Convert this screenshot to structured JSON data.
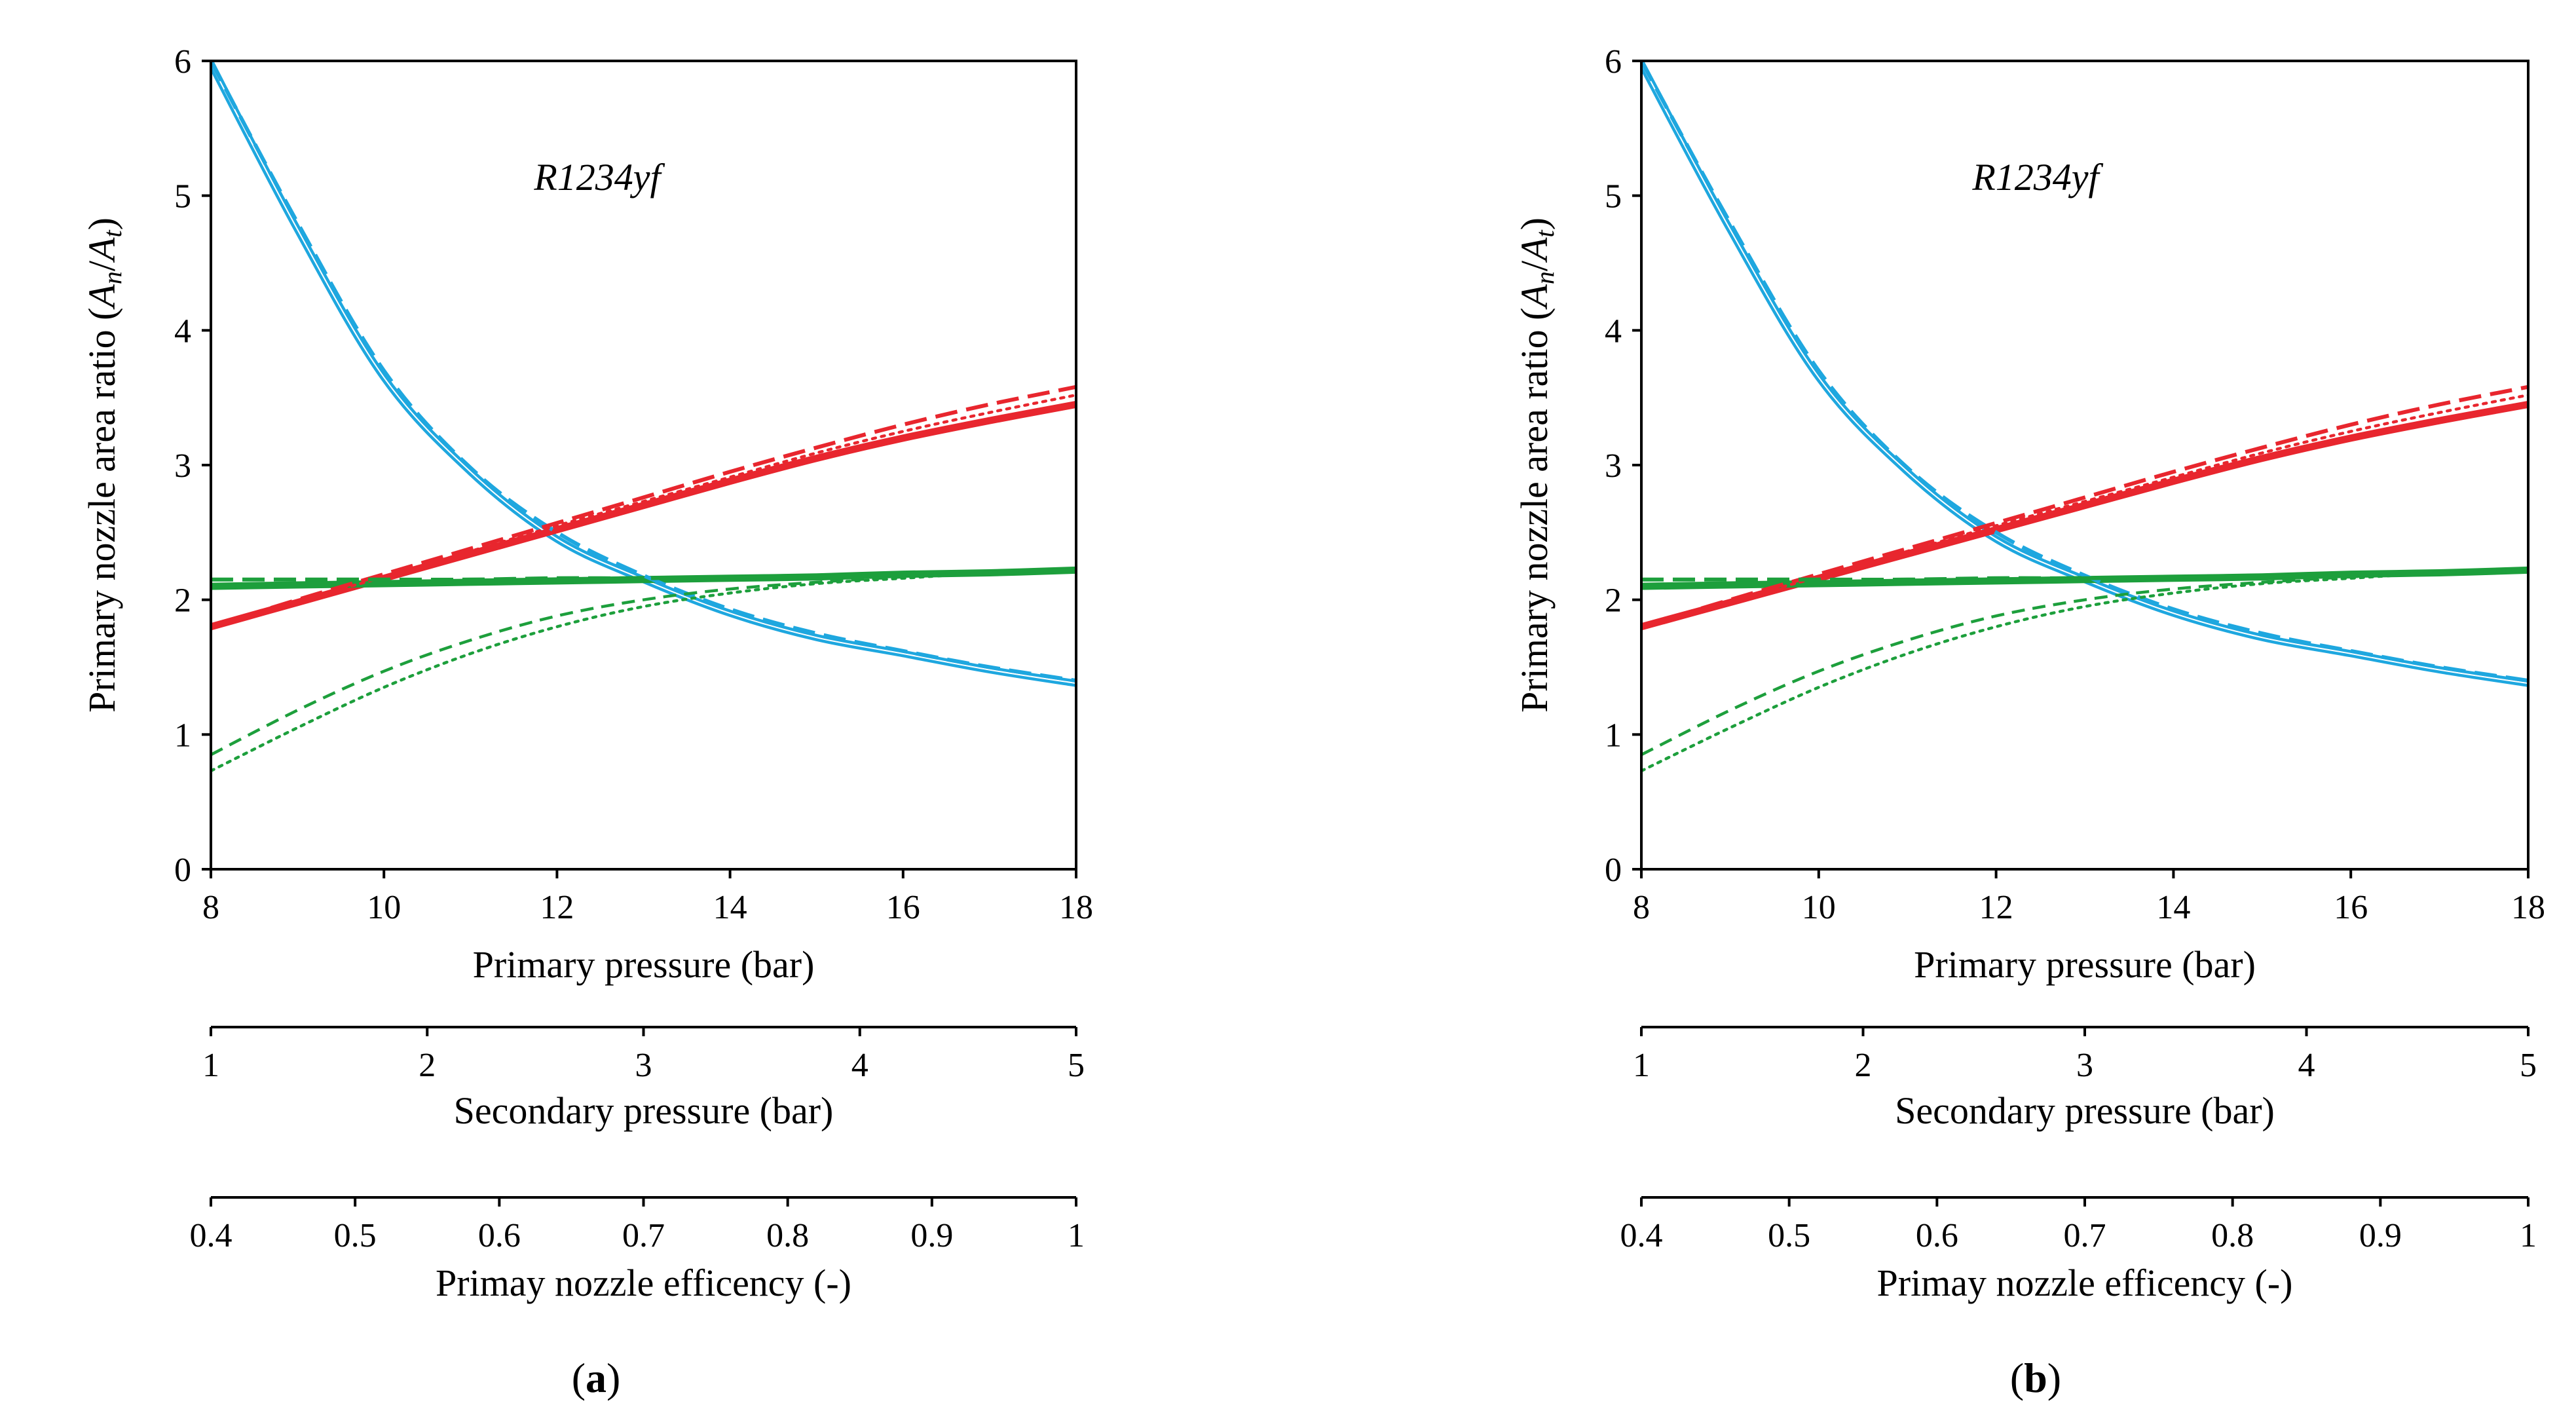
{
  "colors": {
    "blue": "#1ea7df",
    "red": "#e8262e",
    "green": "#1d9f3c",
    "axis": "#000000"
  },
  "chart_data": [
    {
      "panel": "(a)",
      "panel_label": "a",
      "type": "line",
      "annotation": "R1234yf",
      "ylabel": "Primary nozzle area ratio (An/At)",
      "ylabel_main": "Primary nozzle area ratio (",
      "ylabel_var1": "A",
      "ylabel_sub1": "n",
      "ylabel_var2": "A",
      "ylabel_sub2": "t",
      "ylim": [
        0,
        6
      ],
      "yticks": [
        "0",
        "1",
        "2",
        "3",
        "4",
        "5",
        "6"
      ],
      "xaxes": [
        {
          "label": "Primary pressure (bar)",
          "range": [
            8,
            18
          ],
          "ticks": [
            "8",
            "10",
            "12",
            "14",
            "16",
            "18"
          ]
        },
        {
          "label": "Secondary pressure (bar)",
          "range": [
            1,
            5
          ],
          "ticks": [
            "1",
            "2",
            "3",
            "4",
            "5"
          ]
        },
        {
          "label": "Primay nozzle efficency (-)",
          "range": [
            0.4,
            1
          ],
          "ticks": [
            "0.4",
            "0.5",
            "0.6",
            "0.7",
            "0.8",
            "0.9",
            "1"
          ]
        }
      ],
      "x": [
        8,
        9,
        10,
        11,
        12,
        13,
        14,
        15,
        16,
        17,
        18
      ],
      "series": [
        {
          "name": "blue-solid",
          "color": "blue",
          "style": "solid",
          "values": [
            5.98,
            4.75,
            3.65,
            2.95,
            2.45,
            2.15,
            1.9,
            1.72,
            1.6,
            1.48,
            1.38
          ]
        },
        {
          "name": "blue-dashed",
          "color": "blue",
          "style": "longdash",
          "values": [
            6.0,
            4.8,
            3.7,
            2.98,
            2.5,
            2.18,
            1.93,
            1.75,
            1.62,
            1.5,
            1.4
          ]
        },
        {
          "name": "red-solid",
          "color": "red",
          "style": "solid",
          "values": [
            1.8,
            1.98,
            2.16,
            2.34,
            2.52,
            2.7,
            2.88,
            3.05,
            3.2,
            3.33,
            3.45
          ]
        },
        {
          "name": "red-dashed",
          "color": "red",
          "style": "longdash",
          "values": [
            1.8,
            2.0,
            2.19,
            2.38,
            2.57,
            2.76,
            2.95,
            3.13,
            3.3,
            3.45,
            3.58
          ]
        },
        {
          "name": "red-dotted",
          "color": "red",
          "style": "dotted",
          "values": [
            1.8,
            1.99,
            2.17,
            2.36,
            2.55,
            2.73,
            2.91,
            3.09,
            3.25,
            3.39,
            3.52
          ]
        },
        {
          "name": "green-solid",
          "color": "green",
          "style": "solid",
          "values": [
            2.1,
            2.11,
            2.12,
            2.13,
            2.14,
            2.15,
            2.16,
            2.17,
            2.19,
            2.2,
            2.22
          ]
        },
        {
          "name": "green-longdash",
          "color": "green",
          "style": "longdash",
          "values": [
            2.15,
            2.15,
            2.15,
            2.15,
            2.16,
            2.16,
            2.17,
            2.18,
            2.19,
            2.21,
            2.22
          ]
        },
        {
          "name": "green-dashed",
          "color": "green",
          "style": "dashed",
          "values": [
            0.85,
            1.18,
            1.47,
            1.7,
            1.88,
            2.0,
            2.08,
            2.13,
            2.17,
            2.2,
            2.22
          ]
        },
        {
          "name": "green-dotted",
          "color": "green",
          "style": "dotted",
          "values": [
            0.73,
            1.05,
            1.35,
            1.6,
            1.8,
            1.95,
            2.05,
            2.12,
            2.16,
            2.2,
            2.22
          ]
        }
      ]
    },
    {
      "panel": "(b)",
      "panel_label": "b",
      "type": "line",
      "annotation": "R1234yf",
      "ylabel": "Primary nozzle area ratio (An/At)",
      "ylabel_main": "Primary nozzle area ratio (",
      "ylabel_var1": "A",
      "ylabel_sub1": "n",
      "ylabel_var2": "A",
      "ylabel_sub2": "t",
      "ylim": [
        0,
        6
      ],
      "yticks": [
        "0",
        "1",
        "2",
        "3",
        "4",
        "5",
        "6"
      ],
      "xaxes": [
        {
          "label": "Primary pressure (bar)",
          "range": [
            8,
            18
          ],
          "ticks": [
            "8",
            "10",
            "12",
            "14",
            "16",
            "18"
          ]
        },
        {
          "label": "Secondary pressure (bar)",
          "range": [
            1,
            5
          ],
          "ticks": [
            "1",
            "2",
            "3",
            "4",
            "5"
          ]
        },
        {
          "label": "Primay nozzle efficency (-)",
          "range": [
            0.4,
            1
          ],
          "ticks": [
            "0.4",
            "0.5",
            "0.6",
            "0.7",
            "0.8",
            "0.9",
            "1"
          ]
        }
      ],
      "x": [
        8,
        9,
        10,
        11,
        12,
        13,
        14,
        15,
        16,
        17,
        18
      ],
      "series": [
        {
          "name": "blue-solid",
          "color": "blue",
          "style": "solid",
          "values": [
            5.98,
            4.75,
            3.65,
            2.95,
            2.45,
            2.15,
            1.9,
            1.72,
            1.6,
            1.48,
            1.38
          ]
        },
        {
          "name": "blue-dashed",
          "color": "blue",
          "style": "longdash",
          "values": [
            6.0,
            4.8,
            3.7,
            2.98,
            2.5,
            2.18,
            1.93,
            1.75,
            1.62,
            1.5,
            1.4
          ]
        },
        {
          "name": "red-solid",
          "color": "red",
          "style": "solid",
          "values": [
            1.8,
            1.98,
            2.16,
            2.34,
            2.52,
            2.7,
            2.88,
            3.05,
            3.2,
            3.33,
            3.45
          ]
        },
        {
          "name": "red-dashed",
          "color": "red",
          "style": "longdash",
          "values": [
            1.8,
            2.0,
            2.19,
            2.38,
            2.57,
            2.76,
            2.95,
            3.13,
            3.3,
            3.45,
            3.58
          ]
        },
        {
          "name": "red-dotted",
          "color": "red",
          "style": "dotted",
          "values": [
            1.8,
            1.99,
            2.17,
            2.36,
            2.55,
            2.73,
            2.91,
            3.09,
            3.25,
            3.39,
            3.52
          ]
        },
        {
          "name": "green-solid",
          "color": "green",
          "style": "solid",
          "values": [
            2.1,
            2.11,
            2.12,
            2.13,
            2.14,
            2.15,
            2.16,
            2.17,
            2.19,
            2.2,
            2.22
          ]
        },
        {
          "name": "green-longdash",
          "color": "green",
          "style": "longdash",
          "values": [
            2.15,
            2.15,
            2.15,
            2.15,
            2.16,
            2.16,
            2.17,
            2.18,
            2.19,
            2.21,
            2.22
          ]
        },
        {
          "name": "green-dashed",
          "color": "green",
          "style": "dashed",
          "values": [
            0.85,
            1.18,
            1.47,
            1.7,
            1.88,
            2.0,
            2.08,
            2.13,
            2.17,
            2.2,
            2.22
          ]
        },
        {
          "name": "green-dotted",
          "color": "green",
          "style": "dotted",
          "values": [
            0.73,
            1.05,
            1.35,
            1.6,
            1.8,
            1.95,
            2.05,
            2.12,
            2.16,
            2.2,
            2.22
          ]
        }
      ]
    }
  ]
}
